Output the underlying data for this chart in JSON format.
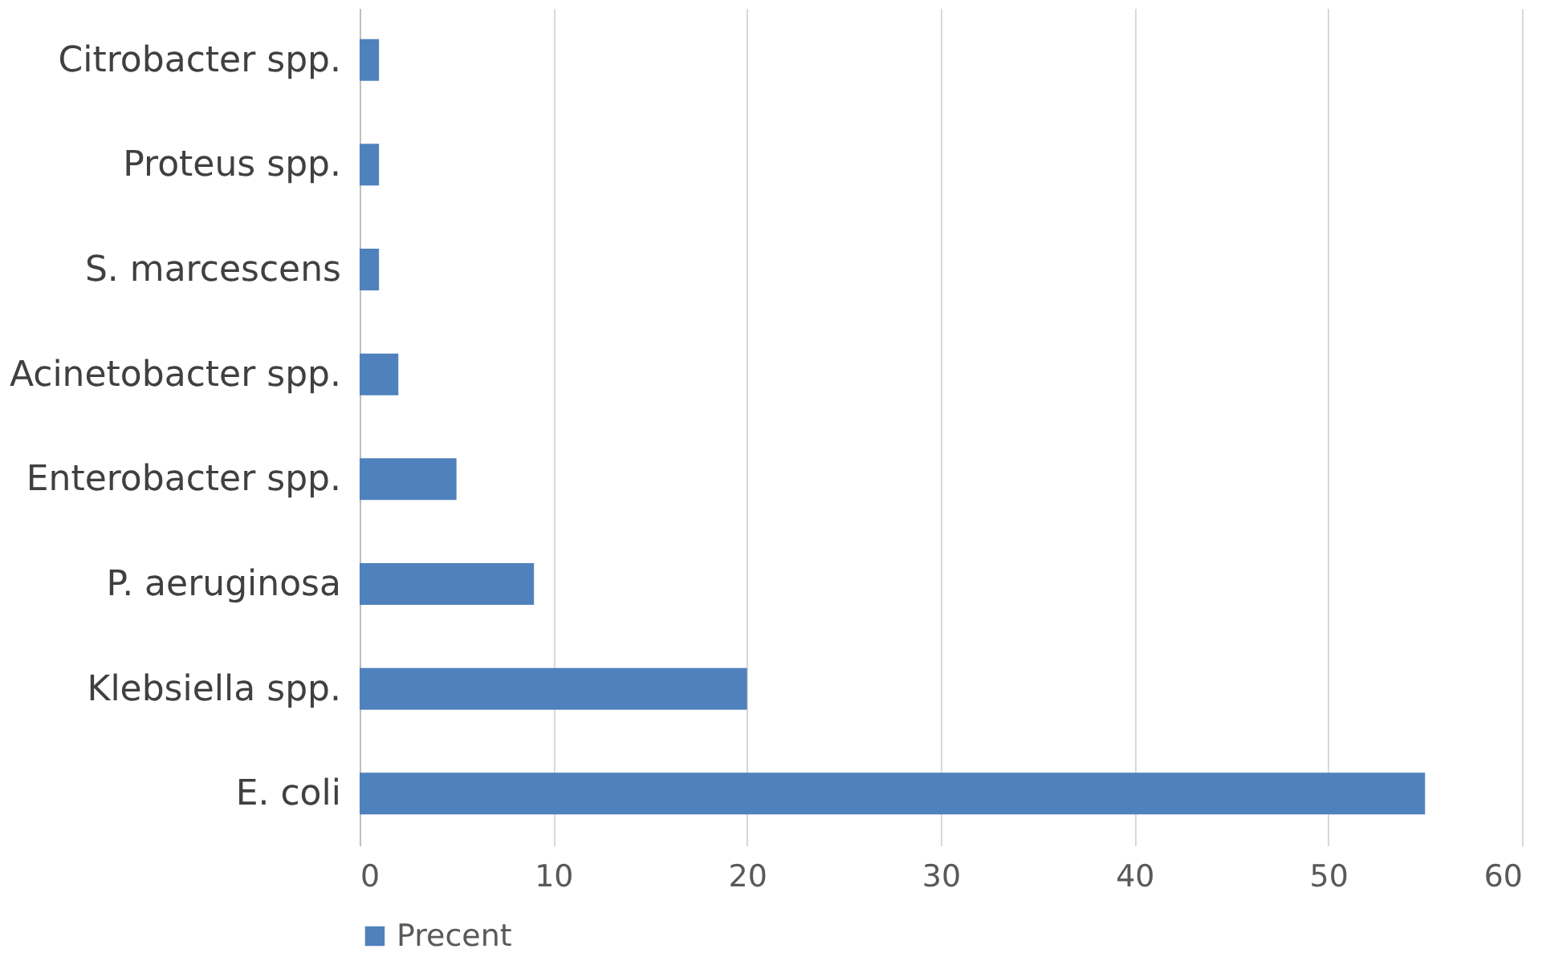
{
  "chart_data": {
    "type": "bar",
    "orientation": "horizontal",
    "categories": [
      "Citrobacter spp.",
      "Proteus spp.",
      "S. marcescens",
      "Acinetobacter spp.",
      "Enterobacter spp.",
      "P. aeruginosa",
      "Klebsiella spp.",
      "E. coli"
    ],
    "series": [
      {
        "name": "Precent",
        "color": "#4f81bd",
        "values": [
          1,
          1,
          1,
          2,
          5,
          9,
          20,
          55
        ]
      }
    ],
    "xlim": [
      0,
      60
    ],
    "xticks": [
      0,
      10,
      20,
      30,
      40,
      50,
      60
    ],
    "grid": "x",
    "legend": "bottom"
  }
}
